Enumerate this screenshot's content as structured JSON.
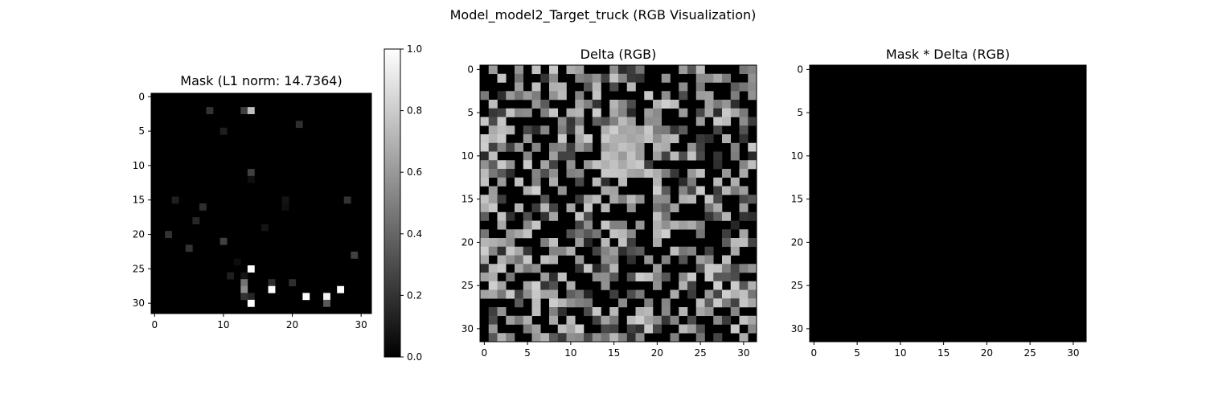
{
  "figure": {
    "suptitle": "Model_model2_Target_truck (RGB Visualization)"
  },
  "chart_data": [
    {
      "type": "heatmap",
      "title": "Mask (L1 norm: 14.7364)",
      "colormap": "gray",
      "grid": false,
      "size": [
        32,
        32
      ],
      "x_range": [
        0,
        31
      ],
      "y_range": [
        0,
        31
      ],
      "xticks": [
        0,
        10,
        20,
        30
      ],
      "yticks": [
        0,
        5,
        10,
        15,
        20,
        25,
        30
      ],
      "background_value": 0,
      "values_nonzero": [
        {
          "row": 2,
          "col": 8,
          "v": 0.2
        },
        {
          "row": 2,
          "col": 13,
          "v": 0.25
        },
        {
          "row": 2,
          "col": 14,
          "v": 0.75
        },
        {
          "row": 4,
          "col": 21,
          "v": 0.18
        },
        {
          "row": 5,
          "col": 10,
          "v": 0.12
        },
        {
          "row": 11,
          "col": 14,
          "v": 0.25
        },
        {
          "row": 12,
          "col": 14,
          "v": 0.06
        },
        {
          "row": 15,
          "col": 3,
          "v": 0.12
        },
        {
          "row": 15,
          "col": 19,
          "v": 0.08
        },
        {
          "row": 15,
          "col": 28,
          "v": 0.2
        },
        {
          "row": 16,
          "col": 7,
          "v": 0.18
        },
        {
          "row": 16,
          "col": 19,
          "v": 0.06
        },
        {
          "row": 18,
          "col": 6,
          "v": 0.15
        },
        {
          "row": 19,
          "col": 16,
          "v": 0.08
        },
        {
          "row": 20,
          "col": 2,
          "v": 0.2
        },
        {
          "row": 21,
          "col": 10,
          "v": 0.25
        },
        {
          "row": 22,
          "col": 5,
          "v": 0.2
        },
        {
          "row": 23,
          "col": 29,
          "v": 0.25
        },
        {
          "row": 24,
          "col": 12,
          "v": 0.05
        },
        {
          "row": 25,
          "col": 14,
          "v": 1.0
        },
        {
          "row": 26,
          "col": 11,
          "v": 0.12
        },
        {
          "row": 26,
          "col": 13,
          "v": 0.08
        },
        {
          "row": 27,
          "col": 13,
          "v": 0.45
        },
        {
          "row": 27,
          "col": 17,
          "v": 0.18
        },
        {
          "row": 27,
          "col": 20,
          "v": 0.18
        },
        {
          "row": 28,
          "col": 13,
          "v": 0.55
        },
        {
          "row": 28,
          "col": 17,
          "v": 1.0
        },
        {
          "row": 28,
          "col": 27,
          "v": 1.0
        },
        {
          "row": 29,
          "col": 13,
          "v": 0.2
        },
        {
          "row": 29,
          "col": 14,
          "v": 0.15
        },
        {
          "row": 29,
          "col": 22,
          "v": 1.0
        },
        {
          "row": 29,
          "col": 25,
          "v": 0.95
        },
        {
          "row": 30,
          "col": 14,
          "v": 1.0
        },
        {
          "row": 30,
          "col": 25,
          "v": 0.35
        }
      ],
      "colorbar": {
        "range": [
          0.0,
          1.0
        ],
        "ticks": [
          "0.0",
          "0.2",
          "0.4",
          "0.6",
          "0.8",
          "1.0"
        ]
      }
    },
    {
      "type": "heatmap",
      "title": "Delta (RGB)",
      "colormap": "gray",
      "grid": false,
      "size": [
        32,
        32
      ],
      "x_range": [
        0,
        31
      ],
      "y_range": [
        0,
        31
      ],
      "xticks": [
        0,
        5,
        10,
        15,
        20,
        25,
        30
      ],
      "yticks": [
        0,
        5,
        10,
        15,
        20,
        25,
        30
      ],
      "value_range": [
        0,
        1
      ],
      "approx_texture": "random dense grayscale noise, roughly half black pixels, with a lighter cluster near rows 7-12, cols 14-18"
    },
    {
      "type": "heatmap",
      "title": "Mask * Delta (RGB)",
      "colormap": "gray",
      "grid": false,
      "size": [
        32,
        32
      ],
      "x_range": [
        0,
        31
      ],
      "y_range": [
        0,
        31
      ],
      "xticks": [
        0,
        5,
        10,
        15,
        20,
        25,
        30
      ],
      "yticks": [
        0,
        5,
        10,
        15,
        20,
        25,
        30
      ],
      "uniform_value": 0
    }
  ]
}
